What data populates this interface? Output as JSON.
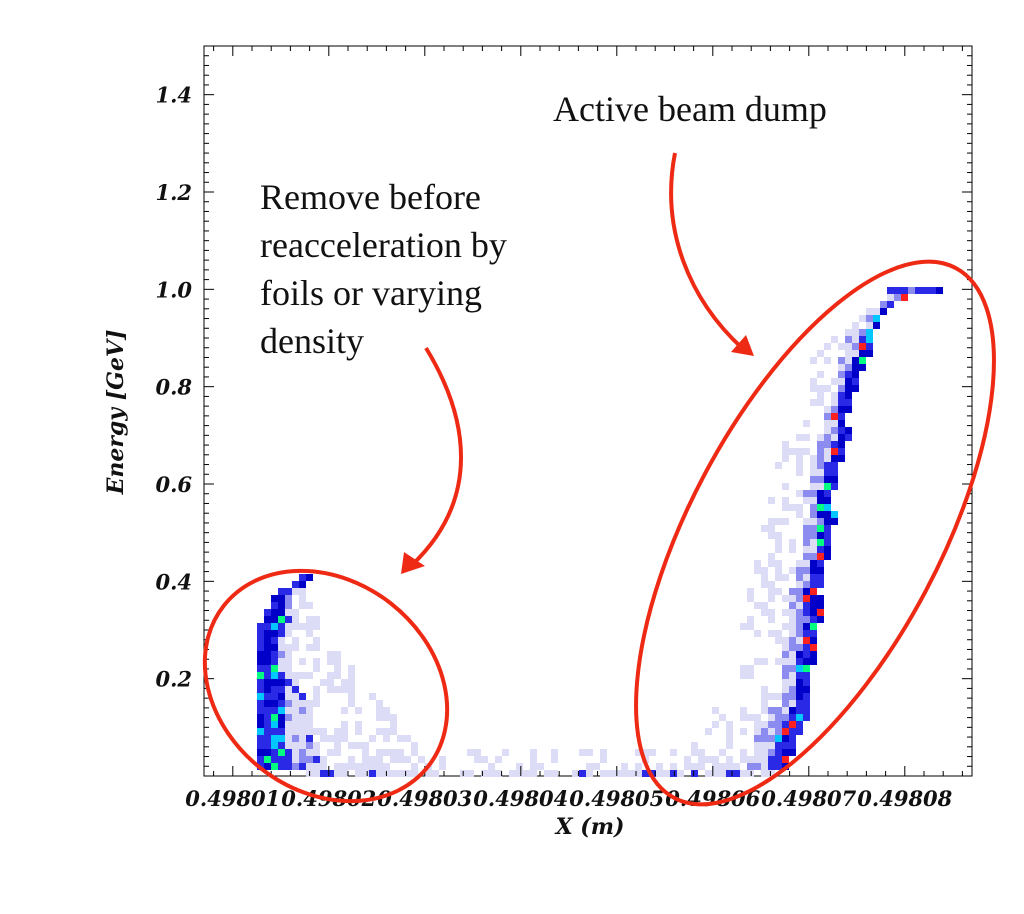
{
  "chart_data": {
    "type": "heatmap",
    "title": "",
    "xlabel": "X (m)",
    "ylabel": "Energy [GeV]",
    "xlim": [
      0.498007,
      0.498087
    ],
    "ylim": [
      0.0,
      1.5
    ],
    "x_ticks": [
      0.49801,
      0.49802,
      0.49803,
      0.49804,
      0.49805,
      0.49806,
      0.49807,
      0.49808
    ],
    "x_tick_labels": [
      "0.49801",
      "0.49802",
      "0.49803",
      "0.49804",
      "0.49805",
      "0.49806",
      "0.49807",
      "0.49808"
    ],
    "y_ticks": [
      0.2,
      0.4,
      0.6,
      0.8,
      1.0,
      1.2,
      1.4
    ],
    "y_tick_labels": [
      "0.2",
      "0.4",
      "0.6",
      "0.8",
      "1.0",
      "1.2",
      "1.4"
    ],
    "grid": false,
    "colorscale": [
      "#ffffff",
      "#dcdcf6",
      "#8c8cf0",
      "#2a2ae6",
      "#0000c8",
      "#00c8ff",
      "#00ff80",
      "#ff2020"
    ],
    "distributions": [
      {
        "name_shown": "",
        "description_points": [
          {
            "x": 0.498014,
            "y": 0.02
          },
          {
            "x": 0.498014,
            "y": 0.1
          },
          {
            "x": 0.4980135,
            "y": 0.2
          },
          {
            "x": 0.4980138,
            "y": 0.3
          },
          {
            "x": 0.4980155,
            "y": 0.38
          },
          {
            "x": 0.498018,
            "y": 0.4
          }
        ]
      },
      {
        "name_shown": "",
        "description_points": [
          {
            "x": 0.4980665,
            "y": 0.02
          },
          {
            "x": 0.498069,
            "y": 0.15
          },
          {
            "x": 0.49807,
            "y": 0.3
          },
          {
            "x": 0.498071,
            "y": 0.45
          },
          {
            "x": 0.498072,
            "y": 0.6
          },
          {
            "x": 0.498074,
            "y": 0.8
          },
          {
            "x": 0.498076,
            "y": 0.92
          },
          {
            "x": 0.498078,
            "y": 0.98
          },
          {
            "x": 0.498083,
            "y": 1.0
          }
        ]
      }
    ],
    "annotations": [
      {
        "lines": [
          "Active beam dump"
        ],
        "color": "#111111"
      },
      {
        "lines": [
          "Remove before",
          "reacceleration by",
          "foils or varying",
          "density"
        ],
        "color": "#111111"
      }
    ],
    "highlight_color": "#ee2a14"
  }
}
